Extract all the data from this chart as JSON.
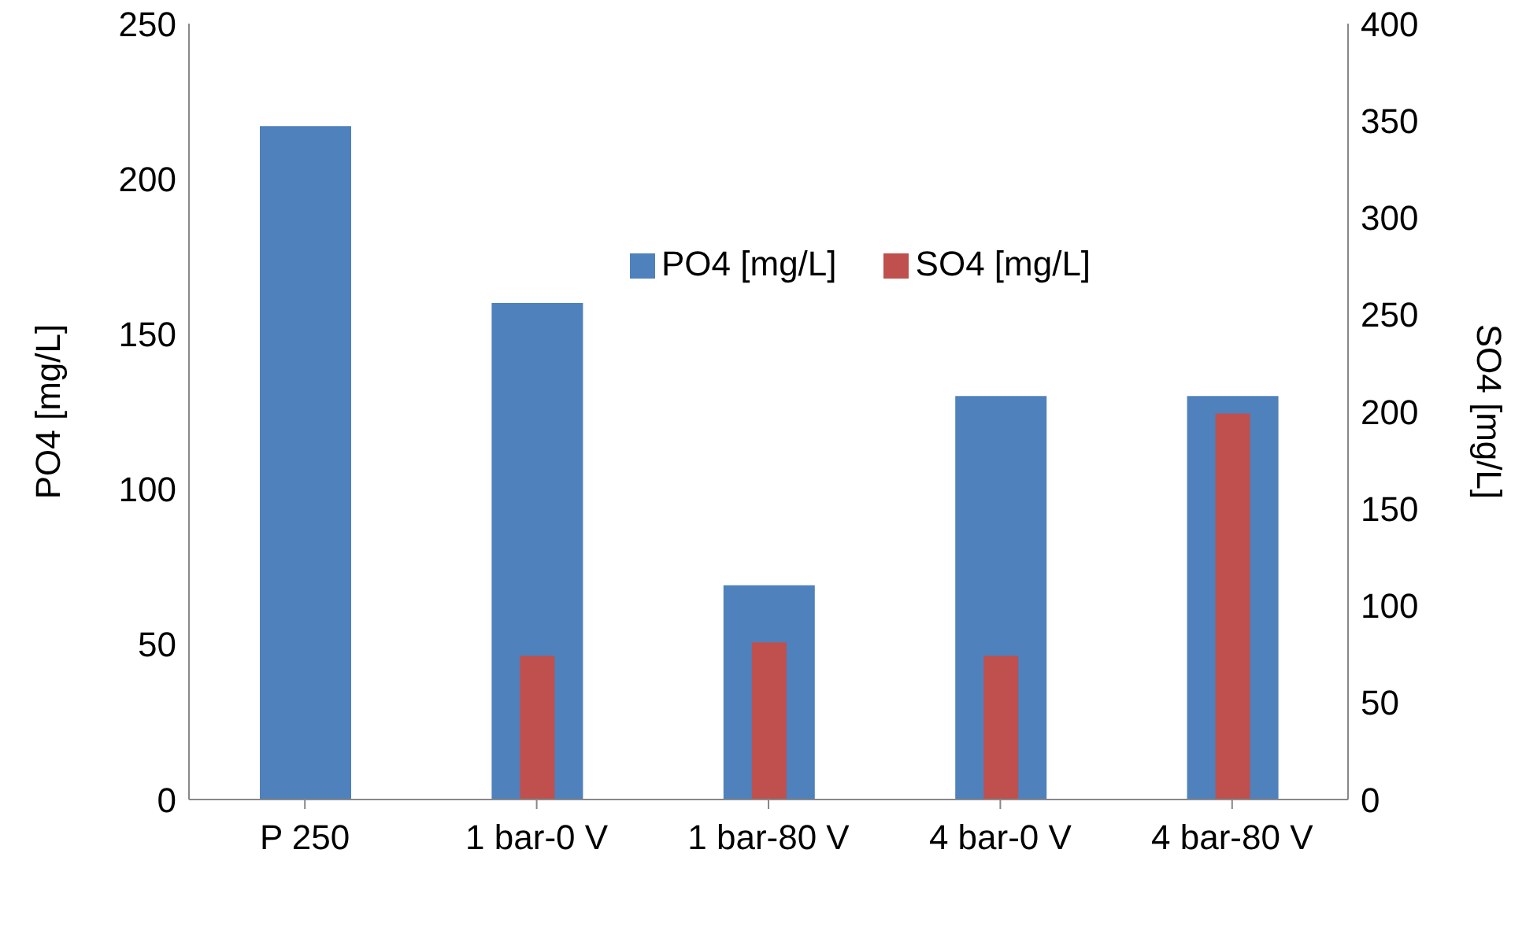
{
  "chart_data": {
    "type": "bar",
    "categories": [
      "P 250",
      "1 bar-0 V",
      "1 bar-80 V",
      "4 bar-0 V",
      "4 bar-80 V"
    ],
    "ylabel": "PO4 [mg/L]",
    "y2label": "SO4 [mg/L]",
    "series": [
      {
        "name": "PO4 [mg/L]",
        "color": "#4f81bd",
        "values": [
          217,
          160,
          69,
          130,
          130
        ]
      },
      {
        "name": "SO4 [mg/L]",
        "color": "#c0504d",
        "values": [
          0,
          74,
          81,
          74,
          199
        ],
        "axis": "y2"
      }
    ],
    "ylim": [
      0,
      250
    ],
    "yticks": [
      0,
      50,
      100,
      150,
      200,
      250
    ],
    "y2lim": [
      0,
      400
    ],
    "y2ticks": [
      0,
      50,
      100,
      150,
      200,
      250,
      300,
      350,
      400
    ],
    "grid": false,
    "legend": "top right"
  }
}
